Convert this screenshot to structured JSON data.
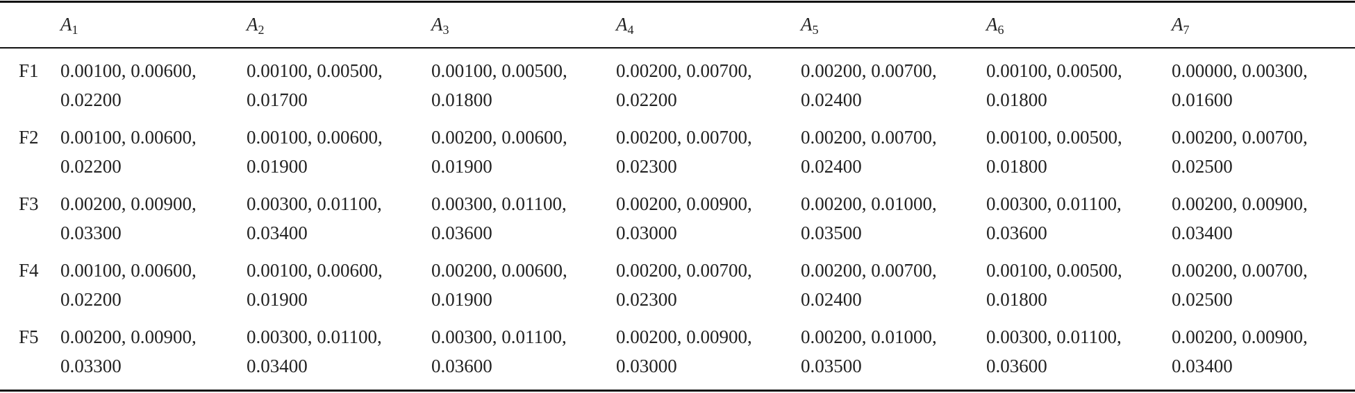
{
  "table": {
    "columns": [
      {
        "symbol": "A",
        "index": "1"
      },
      {
        "symbol": "A",
        "index": "2"
      },
      {
        "symbol": "A",
        "index": "3"
      },
      {
        "symbol": "A",
        "index": "4"
      },
      {
        "symbol": "A",
        "index": "5"
      },
      {
        "symbol": "A",
        "index": "6"
      },
      {
        "symbol": "A",
        "index": "7"
      }
    ],
    "rows": [
      {
        "label": "F1",
        "cells": [
          "0.00100, 0.00600, 0.02200",
          "0.00100, 0.00500, 0.01700",
          "0.00100, 0.00500, 0.01800",
          "0.00200, 0.00700, 0.02200",
          "0.00200, 0.00700, 0.02400",
          "0.00100, 0.00500, 0.01800",
          "0.00000, 0.00300, 0.01600"
        ]
      },
      {
        "label": "F2",
        "cells": [
          "0.00100, 0.00600, 0.02200",
          "0.00100, 0.00600, 0.01900",
          "0.00200, 0.00600, 0.01900",
          "0.00200, 0.00700, 0.02300",
          "0.00200, 0.00700, 0.02400",
          "0.00100, 0.00500, 0.01800",
          "0.00200, 0.00700, 0.02500"
        ]
      },
      {
        "label": "F3",
        "cells": [
          "0.00200, 0.00900, 0.03300",
          "0.00300, 0.01100, 0.03400",
          "0.00300, 0.01100, 0.03600",
          "0.00200, 0.00900, 0.03000",
          "0.00200, 0.01000, 0.03500",
          "0.00300, 0.01100, 0.03600",
          "0.00200, 0.00900, 0.03400"
        ]
      },
      {
        "label": "F4",
        "cells": [
          "0.00100, 0.00600, 0.02200",
          "0.00100, 0.00600, 0.01900",
          "0.00200, 0.00600, 0.01900",
          "0.00200, 0.00700, 0.02300",
          "0.00200, 0.00700, 0.02400",
          "0.00100, 0.00500, 0.01800",
          "0.00200, 0.00700, 0.02500"
        ]
      },
      {
        "label": "F5",
        "cells": [
          "0.00200, 0.00900, 0.03300",
          "0.00300, 0.01100, 0.03400",
          "0.00300, 0.01100, 0.03600",
          "0.00200, 0.00900, 0.03000",
          "0.00200, 0.01000, 0.03500",
          "0.00300, 0.01100, 0.03600",
          "0.00200, 0.00900, 0.03400"
        ]
      }
    ]
  }
}
